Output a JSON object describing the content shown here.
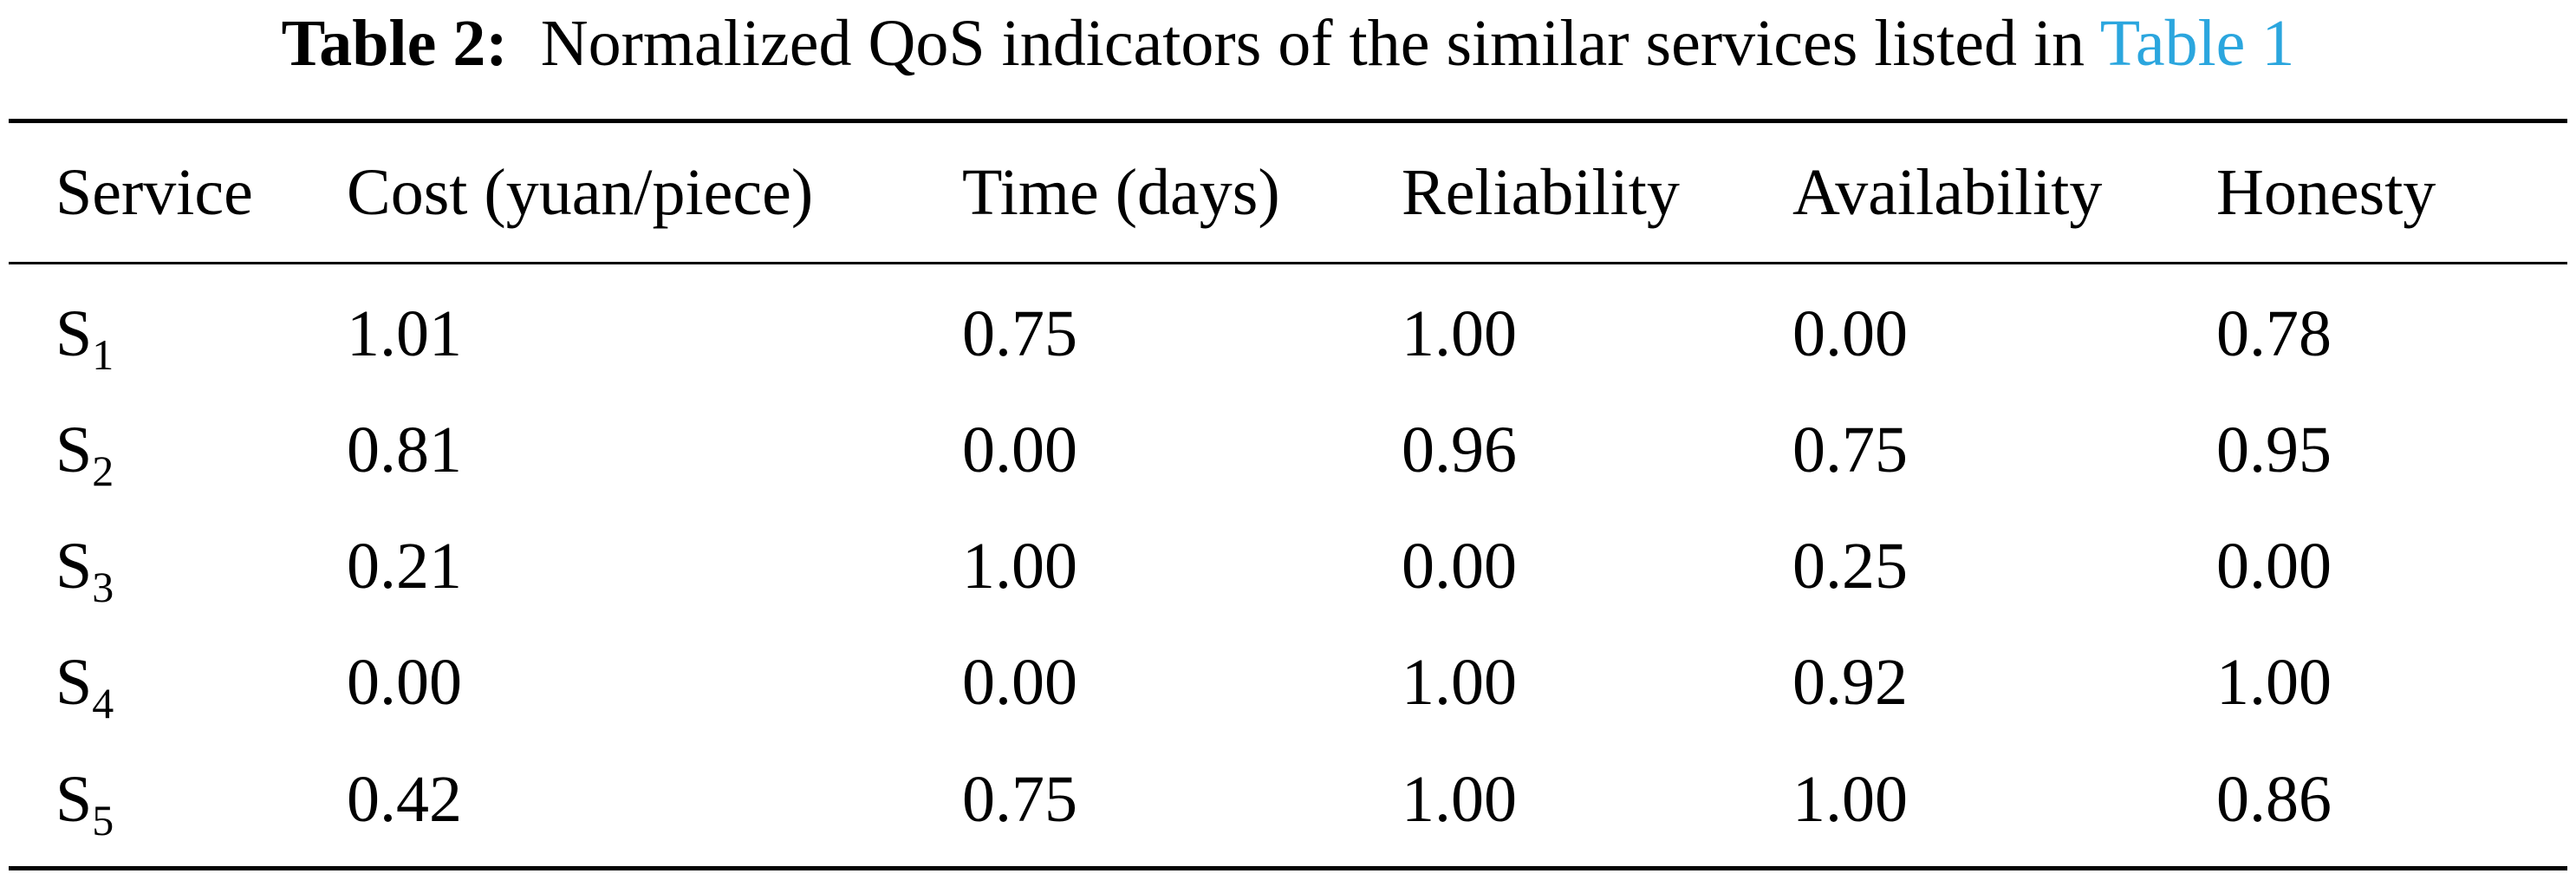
{
  "caption": {
    "label": "Table 2:",
    "text": "Normalized QoS indicators of the similar services listed in",
    "link": "Table 1"
  },
  "table": {
    "headers": [
      "Service",
      "Cost (yuan/piece)",
      "Time (days)",
      "Reliability",
      "Availability",
      "Honesty"
    ],
    "rows": [
      {
        "service": "S",
        "sub": "1",
        "values": [
          "1.01",
          "0.75",
          "1.00",
          "0.00",
          "0.78"
        ]
      },
      {
        "service": "S",
        "sub": "2",
        "values": [
          "0.81",
          "0.00",
          "0.96",
          "0.75",
          "0.95"
        ]
      },
      {
        "service": "S",
        "sub": "3",
        "values": [
          "0.21",
          "1.00",
          "0.00",
          "0.25",
          "0.00"
        ]
      },
      {
        "service": "S",
        "sub": "4",
        "values": [
          "0.00",
          "0.00",
          "1.00",
          "0.92",
          "1.00"
        ]
      },
      {
        "service": "S",
        "sub": "5",
        "values": [
          "0.42",
          "0.75",
          "1.00",
          "1.00",
          "0.86"
        ]
      }
    ]
  },
  "colors": {
    "link": "#2ba6de",
    "text": "#000000"
  }
}
